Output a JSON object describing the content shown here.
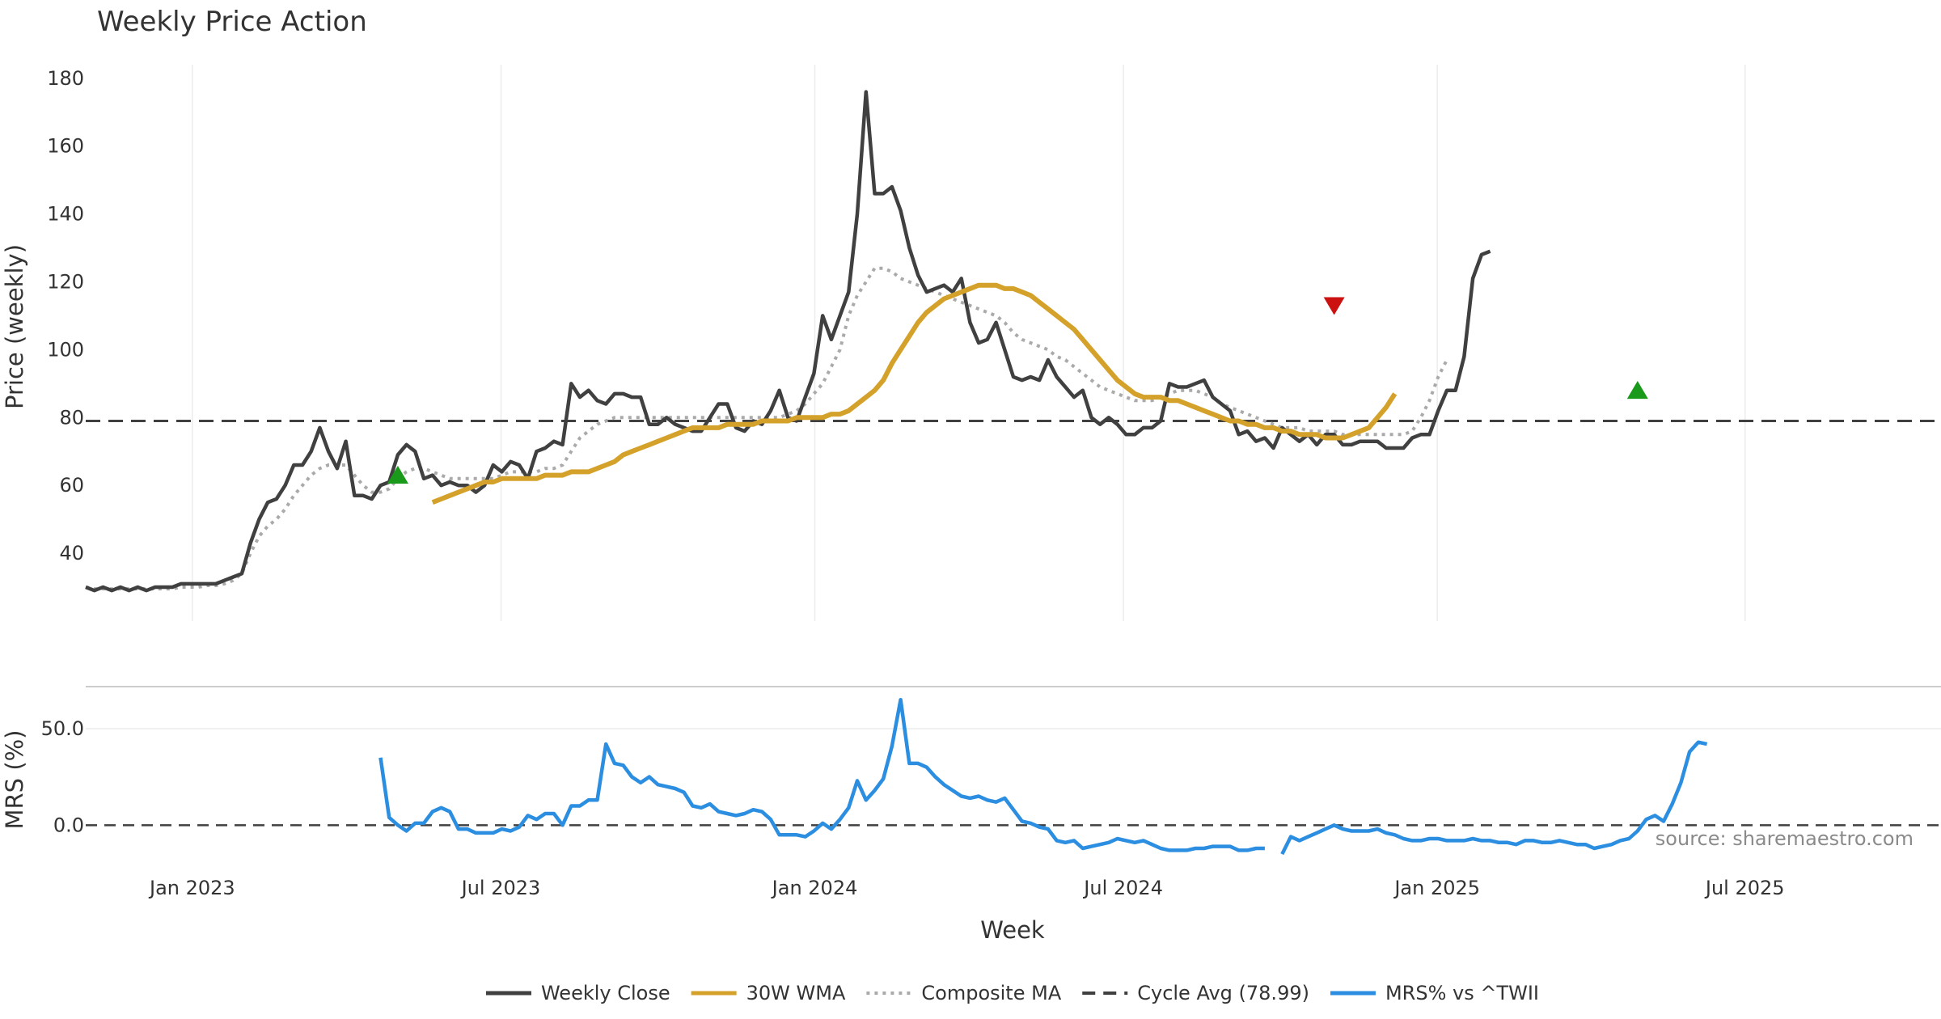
{
  "chart_data": {
    "type": "line",
    "title": "Weekly Price Action",
    "xlabel": "Week",
    "source": "source: sharemaestro.com",
    "colors": {
      "close": "#404040",
      "wma": "#d4a22a",
      "composite": "#aaaaaa",
      "cycle": "#404040",
      "mrs": "#2b8ee0",
      "buy": "#1a9a1a",
      "sell": "#cc1111"
    },
    "x_ticks": [
      "Jan 2023",
      "Jul 2023",
      "Jan 2024",
      "Jul 2024",
      "Jan 2025",
      "Jul 2025"
    ],
    "x_tick_weeks": [
      12.3,
      47.9,
      84.1,
      119.7,
      155.9,
      191.4
    ],
    "week_range": [
      0,
      214
    ],
    "price_panel": {
      "ylabel": "Price (weekly)",
      "ylim": [
        20,
        184
      ],
      "yticks": [
        40,
        60,
        80,
        100,
        120,
        140,
        160,
        180
      ],
      "cycle_avg": 78.99
    },
    "mrs_panel": {
      "ylabel": "MRS (%)",
      "ylim": [
        -25,
        68
      ],
      "yticks": [
        0.0,
        50.0
      ],
      "ytick_labels": [
        "0.0",
        "50.0"
      ]
    },
    "series": [
      {
        "name": "Weekly Close",
        "panel": "price",
        "start_week": 0,
        "values": [
          30,
          29,
          30,
          29,
          30,
          29,
          30,
          29,
          30,
          30,
          30,
          31,
          31,
          31,
          31,
          31,
          32,
          33,
          34,
          43,
          50,
          55,
          56,
          60,
          66,
          66,
          70,
          77,
          70,
          65,
          73,
          57,
          57,
          56,
          60,
          61,
          69,
          72,
          70,
          62,
          63,
          60,
          61,
          60,
          60,
          58,
          60,
          66,
          64,
          67,
          66,
          62,
          70,
          71,
          73,
          72,
          90,
          86,
          88,
          85,
          84,
          87,
          87,
          86,
          86,
          78,
          78,
          80,
          78,
          77,
          76,
          76,
          80,
          84,
          84,
          77,
          76,
          79,
          78,
          82,
          88,
          80,
          79,
          86,
          93,
          110,
          103,
          110,
          117,
          140,
          176,
          146,
          146,
          148,
          141,
          130,
          122,
          117,
          118,
          119,
          117,
          121,
          108,
          102,
          103,
          108,
          100,
          92,
          91,
          92,
          91,
          97,
          92,
          89,
          86,
          88,
          80,
          78,
          80,
          78,
          75,
          75,
          77,
          77,
          79,
          90,
          89,
          89,
          90,
          91,
          86,
          84,
          82,
          75,
          76,
          73,
          74,
          71,
          77,
          75,
          73,
          75,
          72,
          75,
          75,
          72,
          72,
          73,
          73,
          73,
          71,
          71,
          71,
          74,
          75,
          75,
          82,
          88,
          88,
          98,
          121,
          128,
          129
        ]
      },
      {
        "name": "30W WMA",
        "panel": "price",
        "start_week": 40,
        "values": [
          55,
          56,
          57,
          58,
          59,
          60,
          61,
          61,
          62,
          62,
          62,
          62,
          62,
          63,
          63,
          63,
          64,
          64,
          64,
          65,
          66,
          67,
          69,
          70,
          71,
          72,
          73,
          74,
          75,
          76,
          77,
          77,
          77,
          77,
          78,
          78,
          78,
          78,
          79,
          79,
          79,
          79,
          80,
          80,
          80,
          80,
          81,
          81,
          82,
          84,
          86,
          88,
          91,
          96,
          100,
          104,
          108,
          111,
          113,
          115,
          116,
          117,
          118,
          119,
          119,
          119,
          118,
          118,
          117,
          116,
          114,
          112,
          110,
          108,
          106,
          103,
          100,
          97,
          94,
          91,
          89,
          87,
          86,
          86,
          86,
          85,
          85,
          84,
          83,
          82,
          81,
          80,
          79,
          79,
          78,
          78,
          77,
          77,
          76,
          76,
          75,
          75,
          75,
          74,
          74,
          74,
          75,
          76,
          77,
          80,
          83,
          87
        ]
      },
      {
        "name": "Composite MA",
        "panel": "price",
        "start_week": 0,
        "values": [
          30,
          29.5,
          29.5,
          29.5,
          29.5,
          29.5,
          29.5,
          29.5,
          29.5,
          29.5,
          29.5,
          30,
          30,
          30,
          30.5,
          30.5,
          31,
          32,
          34,
          40,
          45,
          48,
          50,
          53,
          57,
          60,
          63,
          65,
          66,
          66,
          66,
          63,
          60,
          58,
          58,
          59,
          62,
          64,
          65,
          65,
          64,
          63,
          62,
          62,
          62,
          62,
          62,
          62,
          63,
          64,
          64,
          64,
          64,
          65,
          65,
          66,
          70,
          74,
          76,
          78,
          79,
          80,
          80,
          80,
          80,
          80,
          80,
          80,
          80,
          80,
          80,
          80,
          80,
          80,
          80,
          80,
          80,
          80,
          80,
          80,
          80,
          81,
          82,
          84,
          87,
          90,
          95,
          100,
          110,
          116,
          120,
          124,
          124,
          123,
          121,
          120,
          119,
          118,
          117,
          116,
          115,
          114,
          113,
          112,
          111,
          110,
          108,
          105,
          103,
          102,
          101,
          100,
          98,
          97,
          95,
          93,
          91,
          89,
          88,
          87,
          86,
          85,
          85,
          85,
          86,
          87,
          88,
          88,
          88,
          87,
          86,
          84,
          83,
          82,
          81,
          80,
          79,
          78,
          77,
          77,
          77,
          76,
          76,
          76,
          76,
          75,
          75,
          75,
          75,
          75,
          75,
          75,
          75,
          76,
          80,
          85,
          92,
          97
        ]
      },
      {
        "name": "Cycle Avg (78.99)",
        "panel": "price",
        "constant": 78.99
      },
      {
        "name": "MRS% vs ^TWII",
        "panel": "mrs",
        "start_week": 34,
        "values": [
          35,
          4,
          0,
          -3,
          1,
          1,
          7,
          9,
          7,
          -2,
          -2,
          -4,
          -4,
          -4,
          -2,
          -3,
          -1,
          5,
          3,
          6,
          6,
          0,
          10,
          10,
          13,
          13,
          42,
          32,
          31,
          25,
          22,
          25,
          21,
          20,
          19,
          17,
          10,
          9,
          11,
          7,
          6,
          5,
          6,
          8,
          7,
          3,
          -5,
          -5,
          -5,
          -6,
          -3,
          1,
          -2,
          3,
          9,
          23,
          13,
          18,
          24,
          41,
          65,
          32,
          32,
          30,
          25,
          21,
          18,
          15,
          14,
          15,
          13,
          12,
          14,
          8,
          2,
          1,
          -1,
          -2,
          -8,
          -9,
          -8,
          -12,
          -11,
          -10,
          -9,
          -7,
          -8,
          -9,
          -8,
          -10,
          -12,
          -13,
          -13,
          -13,
          -12,
          -12,
          -11,
          -11,
          -11,
          -13,
          -13,
          -12,
          -12,
          null,
          -15,
          -6,
          -8,
          -6,
          -4,
          -2,
          0,
          -2,
          -3,
          -3,
          -3,
          -2,
          -4,
          -5,
          -7,
          -8,
          -8,
          -7,
          -7,
          -8,
          -8,
          -8,
          -7,
          -8,
          -8,
          -9,
          -9,
          -10,
          -8,
          -8,
          -9,
          -9,
          -8,
          -9,
          -10,
          -10,
          -12,
          -11,
          -10,
          -8,
          -7,
          -3,
          3,
          5,
          2,
          11,
          22,
          38,
          43,
          42
        ]
      }
    ],
    "markers": [
      {
        "type": "buy",
        "week": 36,
        "value": 63
      },
      {
        "type": "sell",
        "week": 144,
        "value": 113
      },
      {
        "type": "buy",
        "week": 179,
        "value": 88
      }
    ],
    "legend": [
      {
        "label": "Weekly Close",
        "style": "solid",
        "color": "#404040"
      },
      {
        "label": "30W WMA",
        "style": "solid",
        "color": "#d4a22a"
      },
      {
        "label": "Composite MA",
        "style": "dotted",
        "color": "#aaaaaa"
      },
      {
        "label": "Cycle Avg (78.99)",
        "style": "dashed",
        "color": "#404040"
      },
      {
        "label": "MRS% vs ^TWII",
        "style": "solid",
        "color": "#2b8ee0"
      }
    ]
  }
}
